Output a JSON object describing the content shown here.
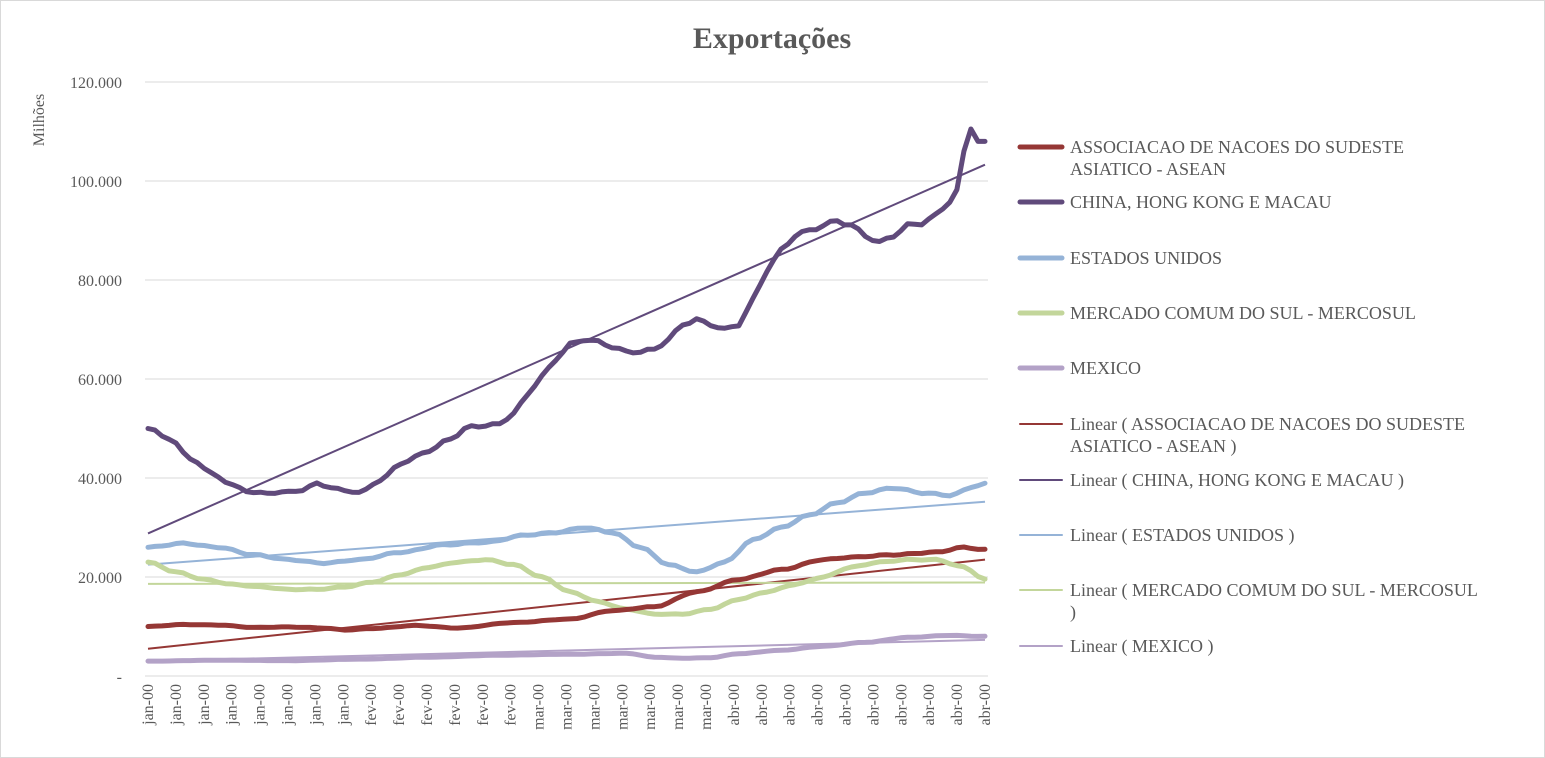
{
  "chart_data": {
    "type": "line",
    "title": "Exportações",
    "ylabel": "Milhões",
    "xlabel": "",
    "ylim": [
      0,
      120000
    ],
    "ytick_values": [
      0,
      20000,
      40000,
      60000,
      80000,
      100000,
      120000
    ],
    "ytick_labels": [
      "-",
      "20.000",
      "40.000",
      "60.000",
      "80.000",
      "100.000",
      "120.000"
    ],
    "grid": "horizontal",
    "legend_position": "right",
    "x_count": 120,
    "x_tick_labels": [
      "jan-00",
      "jan-00",
      "jan-00",
      "jan-00",
      "jan-00",
      "jan-00",
      "jan-00",
      "jan-00",
      "fev-00",
      "fev-00",
      "fev-00",
      "fev-00",
      "fev-00",
      "fev-00",
      "mar-00",
      "mar-00",
      "mar-00",
      "mar-00",
      "mar-00",
      "mar-00",
      "mar-00",
      "abr-00",
      "abr-00",
      "abr-00",
      "abr-00",
      "abr-00",
      "abr-00",
      "abr-00",
      "abr-00",
      "abr-00",
      "abr-00"
    ],
    "series": [
      {
        "name": "ASSOCIACAO DE NACOES DO SUDESTE ASIATICO - ASEAN",
        "color": "#953735",
        "keyframes": [
          [
            0,
            10000
          ],
          [
            5,
            10400
          ],
          [
            10,
            10300
          ],
          [
            15,
            9800
          ],
          [
            20,
            9900
          ],
          [
            25,
            9700
          ],
          [
            28,
            9300
          ],
          [
            32,
            9600
          ],
          [
            38,
            10200
          ],
          [
            44,
            9700
          ],
          [
            52,
            10800
          ],
          [
            60,
            11500
          ],
          [
            66,
            13200
          ],
          [
            72,
            14000
          ],
          [
            78,
            17000
          ],
          [
            84,
            19500
          ],
          [
            90,
            21500
          ],
          [
            96,
            23500
          ],
          [
            100,
            24000
          ],
          [
            106,
            24500
          ],
          [
            112,
            25000
          ],
          [
            116,
            26000
          ],
          [
            119,
            25500
          ]
        ],
        "trend": [
          5500,
          23500
        ]
      },
      {
        "name": "CHINA, HONG KONG E MACAU",
        "color": "#604a7b",
        "keyframes": [
          [
            0,
            50000
          ],
          [
            3,
            48000
          ],
          [
            6,
            44000
          ],
          [
            9,
            41000
          ],
          [
            12,
            38500
          ],
          [
            15,
            37000
          ],
          [
            18,
            37000
          ],
          [
            22,
            37500
          ],
          [
            24,
            39000
          ],
          [
            26,
            38000
          ],
          [
            28,
            37500
          ],
          [
            30,
            37000
          ],
          [
            33,
            39500
          ],
          [
            36,
            43000
          ],
          [
            40,
            45500
          ],
          [
            43,
            48000
          ],
          [
            46,
            50500
          ],
          [
            48,
            50500
          ],
          [
            50,
            51000
          ],
          [
            52,
            53000
          ],
          [
            54,
            57000
          ],
          [
            56,
            60500
          ],
          [
            58,
            64000
          ],
          [
            60,
            67000
          ],
          [
            62,
            68000
          ],
          [
            64,
            67500
          ],
          [
            66,
            66500
          ],
          [
            68,
            65500
          ],
          [
            70,
            65500
          ],
          [
            72,
            66000
          ],
          [
            74,
            68000
          ],
          [
            76,
            71000
          ],
          [
            78,
            72000
          ],
          [
            80,
            71000
          ],
          [
            82,
            70000
          ],
          [
            84,
            71000
          ],
          [
            86,
            76000
          ],
          [
            88,
            82000
          ],
          [
            90,
            86000
          ],
          [
            92,
            89000
          ],
          [
            94,
            90000
          ],
          [
            96,
            91000
          ],
          [
            98,
            92000
          ],
          [
            100,
            91000
          ],
          [
            102,
            89000
          ],
          [
            104,
            87500
          ],
          [
            106,
            89000
          ],
          [
            108,
            91000
          ],
          [
            110,
            91500
          ],
          [
            112,
            93000
          ],
          [
            114,
            96000
          ],
          [
            116,
            100000
          ],
          [
            118,
            103000
          ],
          [
            119,
            106000
          ]
        ],
        "keyframes_tail_note": "",
        "trend": [
          28800,
          103300
        ]
      },
      {
        "name": "ESTADOS UNIDOS",
        "color": "#95b3d7",
        "keyframes": [
          [
            0,
            26000
          ],
          [
            5,
            26800
          ],
          [
            10,
            26000
          ],
          [
            15,
            24500
          ],
          [
            20,
            23500
          ],
          [
            25,
            22800
          ],
          [
            30,
            23500
          ],
          [
            36,
            25000
          ],
          [
            42,
            26500
          ],
          [
            48,
            27000
          ],
          [
            54,
            28500
          ],
          [
            58,
            29000
          ],
          [
            62,
            30000
          ],
          [
            66,
            29000
          ],
          [
            70,
            26000
          ],
          [
            74,
            22500
          ],
          [
            78,
            21000
          ],
          [
            82,
            23000
          ],
          [
            86,
            27500
          ],
          [
            90,
            30000
          ],
          [
            94,
            32500
          ],
          [
            98,
            35000
          ],
          [
            102,
            37000
          ],
          [
            106,
            38000
          ],
          [
            110,
            37000
          ],
          [
            114,
            36500
          ],
          [
            118,
            38500
          ],
          [
            119,
            38800
          ]
        ],
        "trend": [
          22500,
          35200
        ]
      },
      {
        "name": "MERCADO COMUM DO SUL - MERCOSUL",
        "color": "#c3d69b",
        "keyframes": [
          [
            0,
            23000
          ],
          [
            4,
            21000
          ],
          [
            8,
            19500
          ],
          [
            12,
            18500
          ],
          [
            16,
            18000
          ],
          [
            20,
            17500
          ],
          [
            24,
            17500
          ],
          [
            28,
            18000
          ],
          [
            32,
            19000
          ],
          [
            36,
            20500
          ],
          [
            40,
            22000
          ],
          [
            44,
            23000
          ],
          [
            48,
            23500
          ],
          [
            52,
            22500
          ],
          [
            56,
            20000
          ],
          [
            60,
            17000
          ],
          [
            64,
            15000
          ],
          [
            68,
            13500
          ],
          [
            72,
            12500
          ],
          [
            76,
            12500
          ],
          [
            80,
            13500
          ],
          [
            84,
            15500
          ],
          [
            88,
            17000
          ],
          [
            92,
            18500
          ],
          [
            96,
            20000
          ],
          [
            100,
            22000
          ],
          [
            104,
            23000
          ],
          [
            108,
            23500
          ],
          [
            112,
            23500
          ],
          [
            116,
            22000
          ],
          [
            119,
            19500
          ]
        ],
        "trend": [
          18600,
          18900
        ]
      },
      {
        "name": "MEXICO",
        "color": "#b3a2c7",
        "keyframes": [
          [
            0,
            3000
          ],
          [
            10,
            3200
          ],
          [
            20,
            3100
          ],
          [
            30,
            3400
          ],
          [
            40,
            3800
          ],
          [
            50,
            4200
          ],
          [
            60,
            4400
          ],
          [
            68,
            4600
          ],
          [
            72,
            3800
          ],
          [
            76,
            3600
          ],
          [
            80,
            3700
          ],
          [
            84,
            4500
          ],
          [
            90,
            5200
          ],
          [
            96,
            6000
          ],
          [
            102,
            6800
          ],
          [
            108,
            7800
          ],
          [
            114,
            8200
          ],
          [
            119,
            8000
          ]
        ],
        "trend": [
          3000,
          7300
        ]
      }
    ],
    "legend": [
      {
        "label_lines": [
          "ASSOCIACAO DE NACOES DO SUDESTE",
          "ASIATICO - ASEAN"
        ],
        "color": "#953735",
        "kind": "series"
      },
      {
        "label_lines": [
          "CHINA, HONG KONG E MACAU"
        ],
        "color": "#604a7b",
        "kind": "series"
      },
      {
        "label_lines": [
          "ESTADOS UNIDOS"
        ],
        "color": "#95b3d7",
        "kind": "series"
      },
      {
        "label_lines": [
          "MERCADO COMUM DO SUL - MERCOSUL"
        ],
        "color": "#c3d69b",
        "kind": "series"
      },
      {
        "label_lines": [
          "MEXICO"
        ],
        "color": "#b3a2c7",
        "kind": "series"
      },
      {
        "label_lines": [
          "Linear ( ASSOCIACAO DE NACOES DO SUDESTE",
          "ASIATICO - ASEAN )"
        ],
        "color": "#953735",
        "kind": "trend"
      },
      {
        "label_lines": [
          "Linear ( CHINA, HONG KONG E MACAU )"
        ],
        "color": "#604a7b",
        "kind": "trend"
      },
      {
        "label_lines": [
          "Linear ( ESTADOS UNIDOS )"
        ],
        "color": "#95b3d7",
        "kind": "trend"
      },
      {
        "label_lines": [
          "Linear ( MERCADO COMUM DO SUL - MERCOSUL",
          ")"
        ],
        "color": "#c3d69b",
        "kind": "trend"
      },
      {
        "label_lines": [
          "Linear ( MEXICO )"
        ],
        "color": "#b3a2c7",
        "kind": "trend"
      }
    ]
  }
}
